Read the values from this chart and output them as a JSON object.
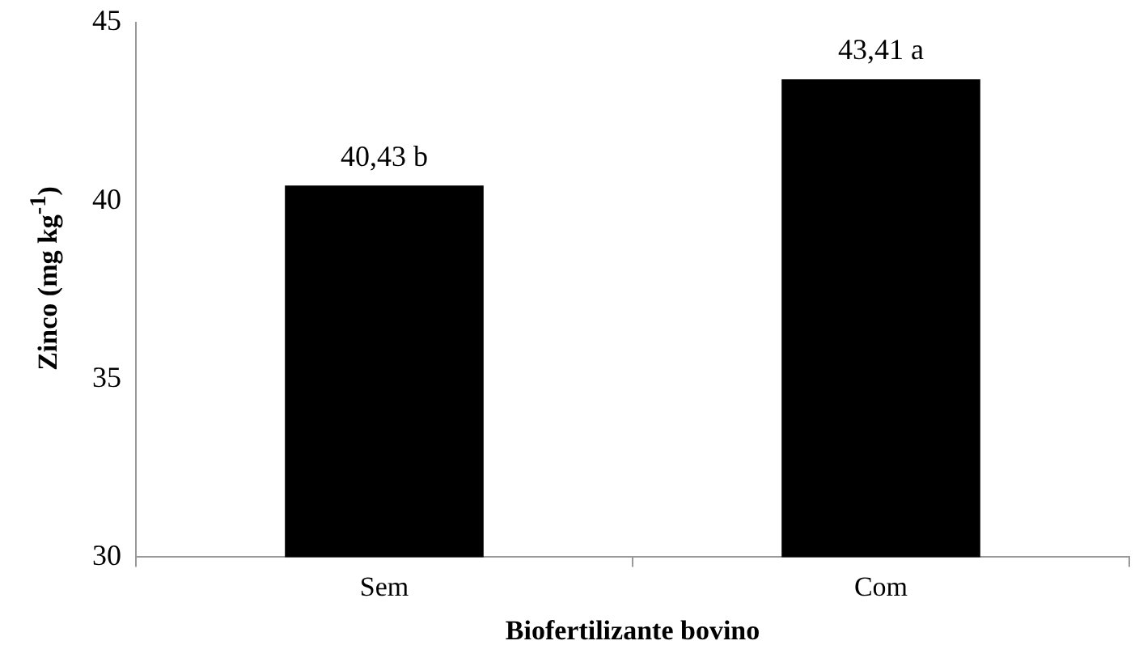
{
  "chart_data": {
    "type": "bar",
    "xlabel": "Biofertilizante bovino",
    "ylabel": "Zinco  (mg kg$^{-1}$)",
    "categories": [
      "Sem",
      "Com"
    ],
    "values": [
      40.43,
      43.41
    ],
    "color": "#000000",
    "value_labels": [
      "40,43 b",
      "43,41 a"
    ],
    "ylim": [
      30,
      45
    ],
    "yticks": [
      30,
      35,
      40,
      45
    ],
    "grid": false,
    "legend": false
  }
}
